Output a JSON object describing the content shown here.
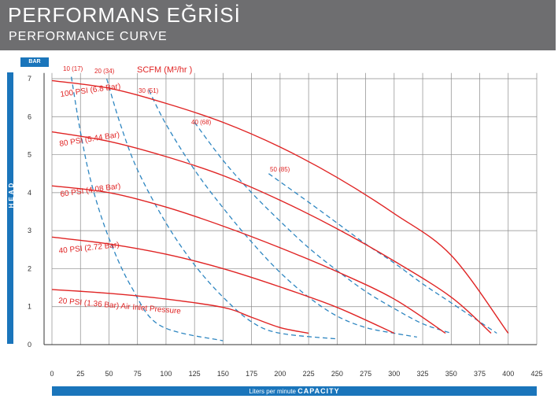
{
  "header": {
    "title_tr": "PERFORMANS EĞRİSİ",
    "title_en": "PERFORMANCE CURVE",
    "background": "#6e6e70"
  },
  "axis_labels": {
    "y_label": "HEAD",
    "y_unit": "BAR",
    "x_label_prefix": "Liters per minute",
    "x_label_main": "CAPACITY",
    "air_title": "SCFM (M³/hr )"
  },
  "colors": {
    "accent_blue": "#1a75bb",
    "pressure_curve": "#e02424",
    "air_curve": "#2e86c1",
    "grid": "#8a8a8a"
  },
  "chart_data": {
    "type": "line",
    "x_ticks": [
      "0",
      "25",
      "50",
      "75",
      "100",
      "125",
      "150",
      "175",
      "200",
      "225",
      "250",
      "275",
      "300",
      "325",
      "350",
      "375",
      "400",
      "425"
    ],
    "y_ticks": [
      "0",
      "1",
      "2",
      "3",
      "4",
      "5",
      "6",
      "7"
    ],
    "xlim": [
      0,
      425
    ],
    "ylim": [
      0,
      7
    ],
    "grid": true,
    "xlabel": "Liters per minute CAPACITY",
    "ylabel": "HEAD",
    "series": [
      {
        "name": "100 PSI (6.8 Bar)",
        "kind": "pressure",
        "points": [
          [
            0,
            6.95
          ],
          [
            50,
            6.75
          ],
          [
            100,
            6.35
          ],
          [
            150,
            5.85
          ],
          [
            200,
            5.2
          ],
          [
            250,
            4.4
          ],
          [
            300,
            3.45
          ],
          [
            350,
            2.35
          ],
          [
            400,
            0.3
          ]
        ]
      },
      {
        "name": "80 PSI (5.44 Bar)",
        "kind": "pressure",
        "points": [
          [
            0,
            5.6
          ],
          [
            50,
            5.35
          ],
          [
            100,
            4.95
          ],
          [
            150,
            4.45
          ],
          [
            200,
            3.8
          ],
          [
            250,
            3.05
          ],
          [
            300,
            2.2
          ],
          [
            350,
            1.25
          ],
          [
            385,
            0.3
          ]
        ]
      },
      {
        "name": "60 PSI (4.08 Bar)",
        "kind": "pressure",
        "points": [
          [
            0,
            4.18
          ],
          [
            50,
            4.0
          ],
          [
            100,
            3.62
          ],
          [
            150,
            3.12
          ],
          [
            200,
            2.55
          ],
          [
            250,
            1.92
          ],
          [
            300,
            1.2
          ],
          [
            345,
            0.3
          ]
        ]
      },
      {
        "name": "40 PSI (2.72 Bar)",
        "kind": "pressure",
        "points": [
          [
            0,
            2.83
          ],
          [
            50,
            2.65
          ],
          [
            100,
            2.38
          ],
          [
            150,
            2.0
          ],
          [
            200,
            1.52
          ],
          [
            250,
            0.98
          ],
          [
            300,
            0.3
          ]
        ]
      },
      {
        "name": "20 PSI (1.36 Bar) Air Inlet Pressure",
        "kind": "pressure",
        "points": [
          [
            0,
            1.45
          ],
          [
            50,
            1.35
          ],
          [
            100,
            1.2
          ],
          [
            150,
            0.98
          ],
          [
            175,
            0.72
          ],
          [
            200,
            0.45
          ],
          [
            225,
            0.3
          ]
        ]
      },
      {
        "name": "10 (17)",
        "kind": "air",
        "points": [
          [
            17,
            7.05
          ],
          [
            25,
            5.6
          ],
          [
            35,
            4.2
          ],
          [
            50,
            2.8
          ],
          [
            70,
            1.5
          ],
          [
            95,
            0.5
          ],
          [
            150,
            0.1
          ]
        ]
      },
      {
        "name": "20 (34)",
        "kind": "air",
        "points": [
          [
            48,
            7.0
          ],
          [
            60,
            5.8
          ],
          [
            75,
            4.6
          ],
          [
            100,
            3.2
          ],
          [
            125,
            2.1
          ],
          [
            150,
            1.25
          ],
          [
            175,
            0.6
          ],
          [
            200,
            0.3
          ],
          [
            250,
            0.15
          ]
        ]
      },
      {
        "name": "30 (51)",
        "kind": "air",
        "points": [
          [
            85,
            6.7
          ],
          [
            100,
            5.8
          ],
          [
            125,
            4.6
          ],
          [
            150,
            3.6
          ],
          [
            175,
            2.7
          ],
          [
            200,
            1.9
          ],
          [
            225,
            1.25
          ],
          [
            250,
            0.75
          ],
          [
            275,
            0.45
          ],
          [
            300,
            0.3
          ],
          [
            320,
            0.2
          ]
        ]
      },
      {
        "name": "40 (68)",
        "kind": "air",
        "points": [
          [
            125,
            5.85
          ],
          [
            150,
            4.85
          ],
          [
            175,
            4.0
          ],
          [
            200,
            3.25
          ],
          [
            225,
            2.55
          ],
          [
            250,
            1.95
          ],
          [
            275,
            1.4
          ],
          [
            300,
            0.95
          ],
          [
            325,
            0.55
          ],
          [
            350,
            0.3
          ]
        ]
      },
      {
        "name": "50 (85)",
        "kind": "air",
        "points": [
          [
            190,
            4.5
          ],
          [
            225,
            3.75
          ],
          [
            250,
            3.2
          ],
          [
            275,
            2.65
          ],
          [
            300,
            2.15
          ],
          [
            325,
            1.6
          ],
          [
            350,
            1.1
          ],
          [
            375,
            0.6
          ],
          [
            390,
            0.3
          ]
        ]
      }
    ]
  }
}
